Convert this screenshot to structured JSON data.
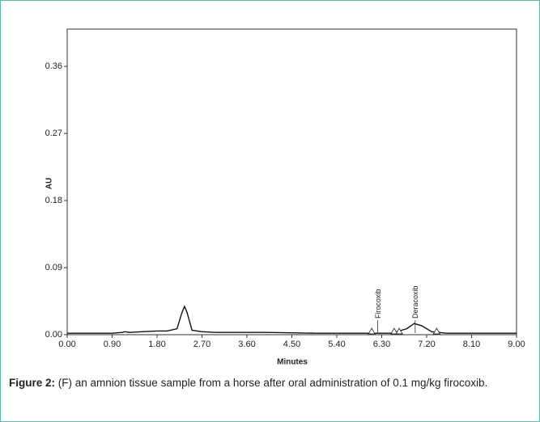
{
  "chart_data": {
    "type": "line",
    "xlabel": "Minutes",
    "ylabel": "AU",
    "xlim": [
      0,
      9
    ],
    "ylim": [
      0,
      0.41
    ],
    "xticks": [
      {
        "value": 0,
        "label": "0.00"
      },
      {
        "value": 0.9,
        "label": "0.90"
      },
      {
        "value": 1.8,
        "label": "1.80"
      },
      {
        "value": 2.7,
        "label": "2.70"
      },
      {
        "value": 3.6,
        "label": "3.60"
      },
      {
        "value": 4.5,
        "label": "4.50"
      },
      {
        "value": 5.4,
        "label": "5.40"
      },
      {
        "value": 6.3,
        "label": "6.30"
      },
      {
        "value": 7.2,
        "label": "7.20"
      },
      {
        "value": 8.1,
        "label": "8.10"
      },
      {
        "value": 9,
        "label": "9.00"
      }
    ],
    "yticks": [
      {
        "value": 0,
        "label": "0.00"
      },
      {
        "value": 0.09,
        "label": "0.09"
      },
      {
        "value": 0.18,
        "label": "0.18"
      },
      {
        "value": 0.27,
        "label": "0.27"
      },
      {
        "value": 0.36,
        "label": "0.36"
      }
    ],
    "series": [
      {
        "color": "#111111",
        "x": [
          0,
          0.9,
          1.1,
          1.15,
          1.25,
          1.5,
          1.8,
          2.0,
          2.2,
          2.3,
          2.35,
          2.4,
          2.5,
          2.7,
          3.0,
          4.0,
          5.0,
          6.0,
          6.5,
          6.8,
          6.95,
          7.1,
          7.3,
          7.6,
          8.0,
          9.0
        ],
        "values": [
          0.002,
          0.002,
          0.003,
          0.004,
          0.003,
          0.004,
          0.005,
          0.005,
          0.008,
          0.03,
          0.038,
          0.03,
          0.006,
          0.004,
          0.003,
          0.003,
          0.002,
          0.002,
          0.002,
          0.008,
          0.015,
          0.012,
          0.004,
          0.002,
          0.002,
          0.002
        ]
      }
    ],
    "annotations": [
      {
        "label": "Firocoxib",
        "x": 6.22
      },
      {
        "label": "Deracoxib",
        "x": 6.97
      }
    ],
    "markers": [
      6.1,
      6.55,
      6.65,
      7.4
    ]
  },
  "caption": {
    "label": "Figure 2:",
    "text": " (F) an amnion tissue sample from a horse after oral administration of 0.1 mg/kg firocoxib."
  }
}
